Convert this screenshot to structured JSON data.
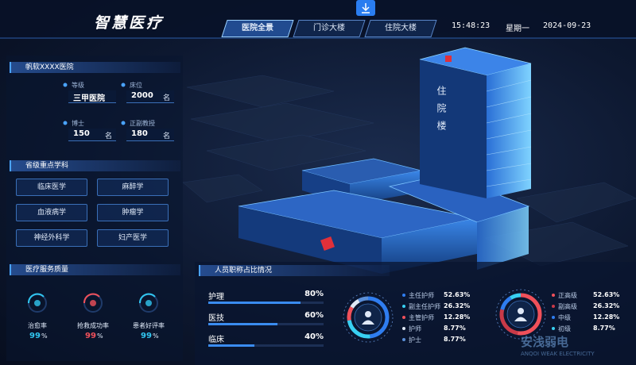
{
  "header": {
    "title": "智慧医疗",
    "tabs": [
      "医院全景",
      "门诊大楼",
      "住院大楼"
    ],
    "time": "15:48:23",
    "weekday": "星期一",
    "date": "2024-09-23"
  },
  "hospital": {
    "name": "帆软XXXX医院",
    "stats": [
      {
        "label": "等级",
        "value": "三甲医院"
      },
      {
        "label": "床位",
        "value": "2000",
        "unit": "名"
      },
      {
        "label": "博士",
        "value": "150",
        "unit": "名"
      },
      {
        "label": "正副教授",
        "value": "180",
        "unit": "名"
      }
    ]
  },
  "disciplines": {
    "title": "省级重点学科",
    "items": [
      "临床医学",
      "麻醉学",
      "血液病学",
      "肿瘤学",
      "神经外科学",
      "妇产医学"
    ]
  },
  "quality": {
    "title": "医疗服务质量",
    "items": [
      {
        "label": "治愈率",
        "value": "99",
        "unit": "%",
        "color": "#31c6f0"
      },
      {
        "label": "抢救成功率",
        "value": "99",
        "unit": "%",
        "color": "#f0505a"
      },
      {
        "label": "患者好评率",
        "value": "99",
        "unit": "%",
        "color": "#31c6f0"
      }
    ]
  },
  "staff": {
    "title": "人员职称占比情况",
    "bars": [
      {
        "label": "护理",
        "value": 80,
        "value_label": "80%"
      },
      {
        "label": "医技",
        "value": 60,
        "value_label": "60%"
      },
      {
        "label": "临床",
        "value": 40,
        "value_label": "40%"
      }
    ],
    "nurse": [
      {
        "name": "主任护师",
        "value": 52.63,
        "value_label": "52.63%",
        "color": "#2f7df0"
      },
      {
        "name": "副主任护师",
        "value": 26.32,
        "value_label": "26.32%",
        "color": "#38d0f2"
      },
      {
        "name": "主管护师",
        "value": 12.28,
        "value_label": "12.28%",
        "color": "#f0505a"
      },
      {
        "name": "护师",
        "value": 8.77,
        "value_label": "8.77%",
        "color": "#dfe8f5"
      },
      {
        "name": "护士",
        "value": 8.77,
        "value_label": "8.77%",
        "color": "#5b8fd8"
      }
    ],
    "doctor": [
      {
        "name": "正高级",
        "value": 52.63,
        "value_label": "52.63%",
        "color": "#f0505a"
      },
      {
        "name": "副高级",
        "value": 26.32,
        "value_label": "26.32%",
        "color": "#c93a48"
      },
      {
        "name": "中级",
        "value": 12.28,
        "value_label": "12.28%",
        "color": "#2f7df0"
      },
      {
        "name": "初级",
        "value": 8.77,
        "value_label": "8.77%",
        "color": "#38d0f2"
      }
    ]
  },
  "building": {
    "label": "住院楼"
  },
  "watermark": {
    "cn": "安浅弱电",
    "en": "ANQOI WEAK ELECTRICITY"
  }
}
